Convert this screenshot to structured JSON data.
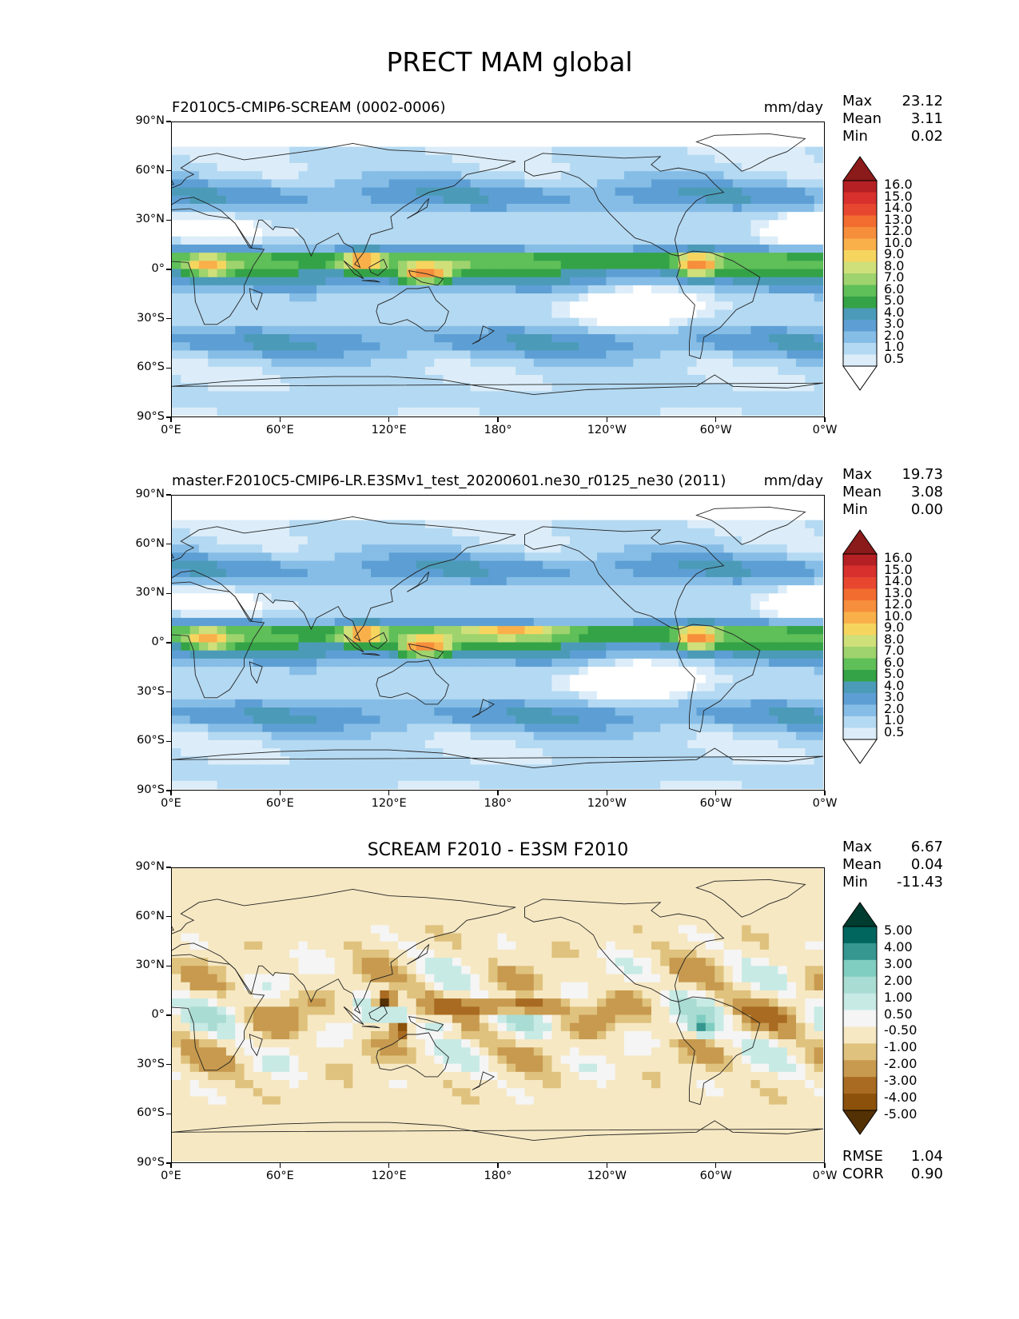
{
  "figure_title": "PRECT MAM global",
  "x_ticks": [
    "0°E",
    "60°E",
    "120°E",
    "180°",
    "120°W",
    "60°W",
    "0°W"
  ],
  "y_ticks": [
    "90°N",
    "60°N",
    "30°N",
    "0°",
    "30°S",
    "60°S",
    "90°S"
  ],
  "panels": [
    {
      "title_left": "F2010C5-CMIP6-SCREAM (0002-0006)",
      "title_center": "",
      "units": "mm/day",
      "stats": [
        {
          "label": "Max",
          "value": "23.12"
        },
        {
          "label": "Mean",
          "value": "3.11"
        },
        {
          "label": "Min",
          "value": "0.02"
        }
      ],
      "colorbar_levels": [
        "16.0",
        "15.0",
        "14.0",
        "13.0",
        "12.0",
        "10.0",
        "9.0",
        "8.0",
        "7.0",
        "6.0",
        "5.0",
        "4.0",
        "3.0",
        "2.0",
        "1.0",
        "0.5"
      ],
      "colorbar_colors": [
        "#8b1a1a",
        "#b52025",
        "#d7302d",
        "#e8472f",
        "#f26c30",
        "#f68e3c",
        "#f9b04a",
        "#f6d55f",
        "#cfe07a",
        "#9ed36d",
        "#5fbf58",
        "#34a347",
        "#4b9bb8",
        "#5d9fd4",
        "#86bde6",
        "#b4d9f2",
        "#dcedf9",
        "#ffffff"
      ],
      "extra_stats": []
    },
    {
      "title_left": "master.F2010C5-CMIP6-LR.E3SMv1_test_20200601.ne30_r0125_ne30 (2011)",
      "title_center": "",
      "units": "mm/day",
      "stats": [
        {
          "label": "Max",
          "value": "19.73"
        },
        {
          "label": "Mean",
          "value": "3.08"
        },
        {
          "label": "Min",
          "value": "0.00"
        }
      ],
      "colorbar_levels": [
        "16.0",
        "15.0",
        "14.0",
        "13.0",
        "12.0",
        "10.0",
        "9.0",
        "8.0",
        "7.0",
        "6.0",
        "5.0",
        "4.0",
        "3.0",
        "2.0",
        "1.0",
        "0.5"
      ],
      "colorbar_colors": [
        "#8b1a1a",
        "#b52025",
        "#d7302d",
        "#e8472f",
        "#f26c30",
        "#f68e3c",
        "#f9b04a",
        "#f6d55f",
        "#cfe07a",
        "#9ed36d",
        "#5fbf58",
        "#34a347",
        "#4b9bb8",
        "#5d9fd4",
        "#86bde6",
        "#b4d9f2",
        "#dcedf9",
        "#ffffff"
      ],
      "extra_stats": []
    },
    {
      "title_left": "",
      "title_center": "SCREAM F2010 - E3SM F2010",
      "units": "",
      "stats": [
        {
          "label": "Max",
          "value": "6.67"
        },
        {
          "label": "Mean",
          "value": "0.04"
        },
        {
          "label": "Min",
          "value": "-11.43"
        }
      ],
      "colorbar_levels": [
        "5.00",
        "4.00",
        "3.00",
        "2.00",
        "1.00",
        "0.50",
        "-0.50",
        "-1.00",
        "-2.00",
        "-3.00",
        "-4.00",
        "-5.00"
      ],
      "colorbar_colors": [
        "#003c30",
        "#01665e",
        "#35978f",
        "#80cdc1",
        "#a9dcd3",
        "#c7eae5",
        "#f5f5f5",
        "#f6e8c3",
        "#dfc27d",
        "#c79a4f",
        "#a86b21",
        "#8c510a",
        "#543005"
      ],
      "extra_stats": [
        {
          "label": "RMSE",
          "value": "1.04"
        },
        {
          "label": "CORR",
          "value": "0.90"
        }
      ]
    }
  ]
}
